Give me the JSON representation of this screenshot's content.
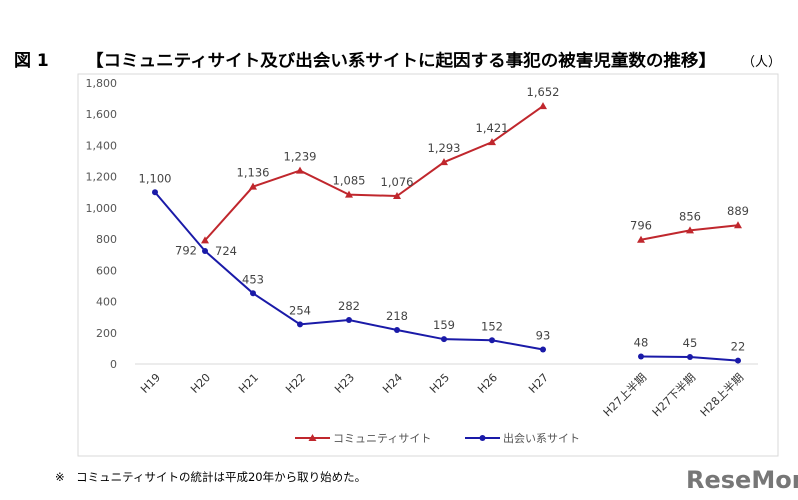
{
  "figure_label": "図 1",
  "unit": "（人）",
  "note": "※　コミュニティサイトの統計は平成20年から取り始めた。",
  "watermark": "ReseMom",
  "chart_data": {
    "type": "line",
    "title": "【コミュニティサイト及び出会い系サイトに起因する事犯の被害児童数の推移】",
    "categories": [
      "H19",
      "H20",
      "H21",
      "H22",
      "H23",
      "H24",
      "H25",
      "H26",
      "H27",
      "H27上半期",
      "H27下半期",
      "H28上半期"
    ],
    "ylim": [
      0,
      1800
    ],
    "yticks": [
      "0",
      "200",
      "400",
      "600",
      "800",
      "1,000",
      "1,200",
      "1,400",
      "1,600",
      "1,800"
    ],
    "grid": false,
    "legend": "bottom",
    "series": [
      {
        "name": "コミュニティサイト",
        "color": "#c0272d",
        "marker": "triangle",
        "values": [
          null,
          792,
          1136,
          1239,
          1085,
          1076,
          1293,
          1421,
          1652,
          796,
          856,
          889
        ],
        "labels": [
          null,
          "792",
          "1,136",
          "1,239",
          "1,085",
          "1,076",
          "1,293",
          "1,421",
          "1,652",
          "796",
          "856",
          "889"
        ]
      },
      {
        "name": "出会い系サイト",
        "color": "#1a1aa8",
        "marker": "circle",
        "values": [
          1100,
          724,
          453,
          254,
          282,
          218,
          159,
          152,
          93,
          48,
          45,
          22
        ],
        "labels": [
          "1,100",
          "724",
          "453",
          "254",
          "282",
          "218",
          "159",
          "152",
          "93",
          "48",
          "45",
          "22"
        ]
      }
    ]
  }
}
